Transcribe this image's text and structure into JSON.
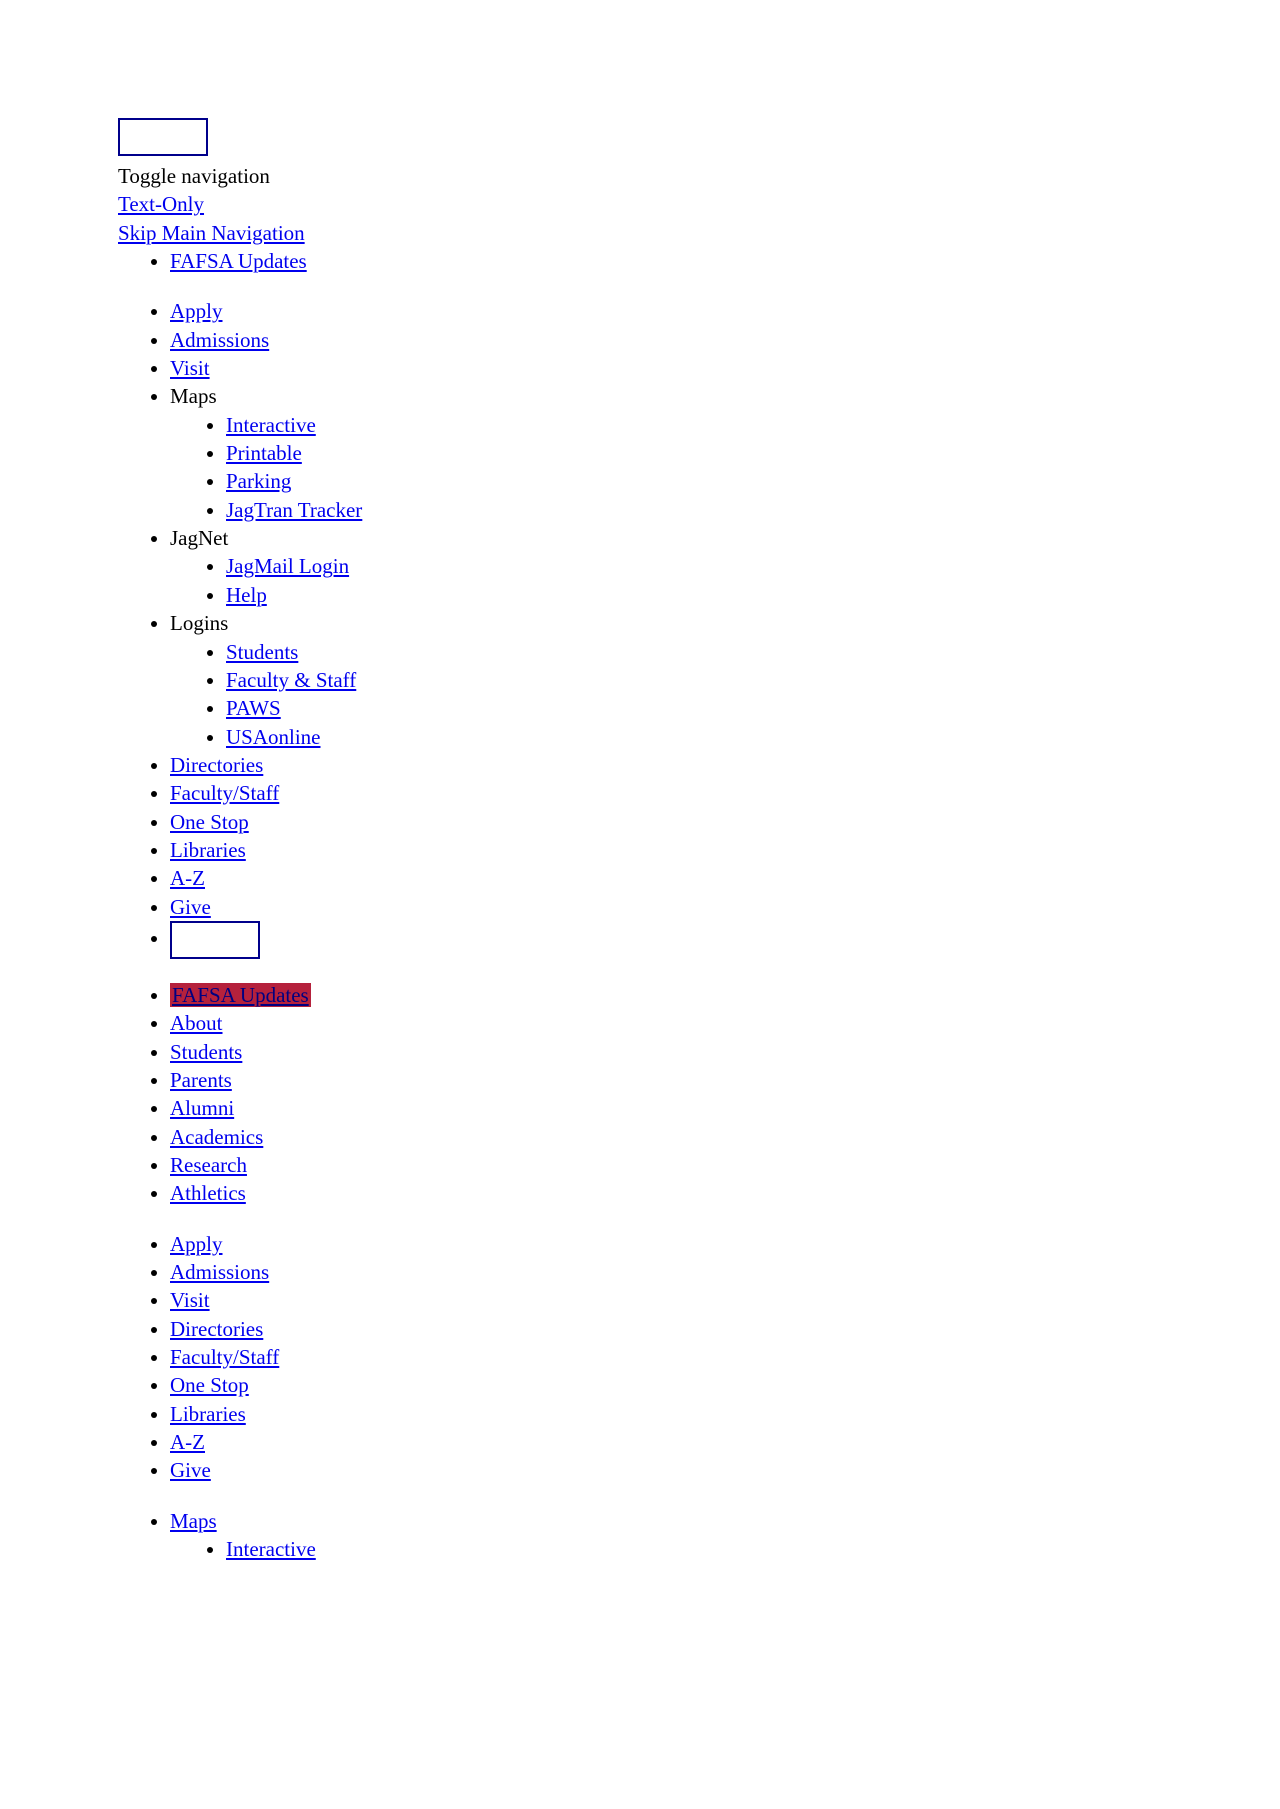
{
  "top": {
    "toggle": "Toggle navigation",
    "textOnly": "Text-Only",
    "skipNav": "Skip Main Navigation"
  },
  "nav1": {
    "fafsa": "FAFSA Updates",
    "apply": "Apply",
    "admissions": "Admissions",
    "visit": "Visit",
    "maps": "Maps",
    "mapsSub": {
      "interactive": "Interactive",
      "printable": "Printable",
      "parking": "Parking",
      "jagtran": "JagTran Tracker"
    },
    "jagnet": "JagNet",
    "jagnetSub": {
      "jagmail": "JagMail Login",
      "help": "Help"
    },
    "logins": "Logins",
    "loginsSub": {
      "students": "Students",
      "faculty": "Faculty & Staff",
      "paws": "PAWS",
      "usaonline": "USAonline"
    },
    "directories": "Directories",
    "facultyStaff": "Faculty/Staff",
    "oneStop": "One Stop",
    "libraries": "Libraries",
    "az": "A-Z",
    "give": "Give"
  },
  "nav2": {
    "fafsa": "FAFSA Updates",
    "about": "About",
    "students": "Students",
    "parents": "Parents",
    "alumni": "Alumni",
    "academics": "Academics",
    "research": "Research",
    "athletics": "Athletics"
  },
  "nav3": {
    "apply": "Apply",
    "admissions": "Admissions",
    "visit": "Visit",
    "directories": "Directories",
    "facultyStaff": "Faculty/Staff",
    "oneStop": "One Stop",
    "libraries": "Libraries",
    "az": "A-Z",
    "give": "Give"
  },
  "nav4": {
    "maps": "Maps",
    "mapsSub": {
      "interactive": "Interactive"
    }
  },
  "colors": {
    "link": "#0000EE",
    "border": "#00008B",
    "highlightBg": "#B5213C"
  }
}
